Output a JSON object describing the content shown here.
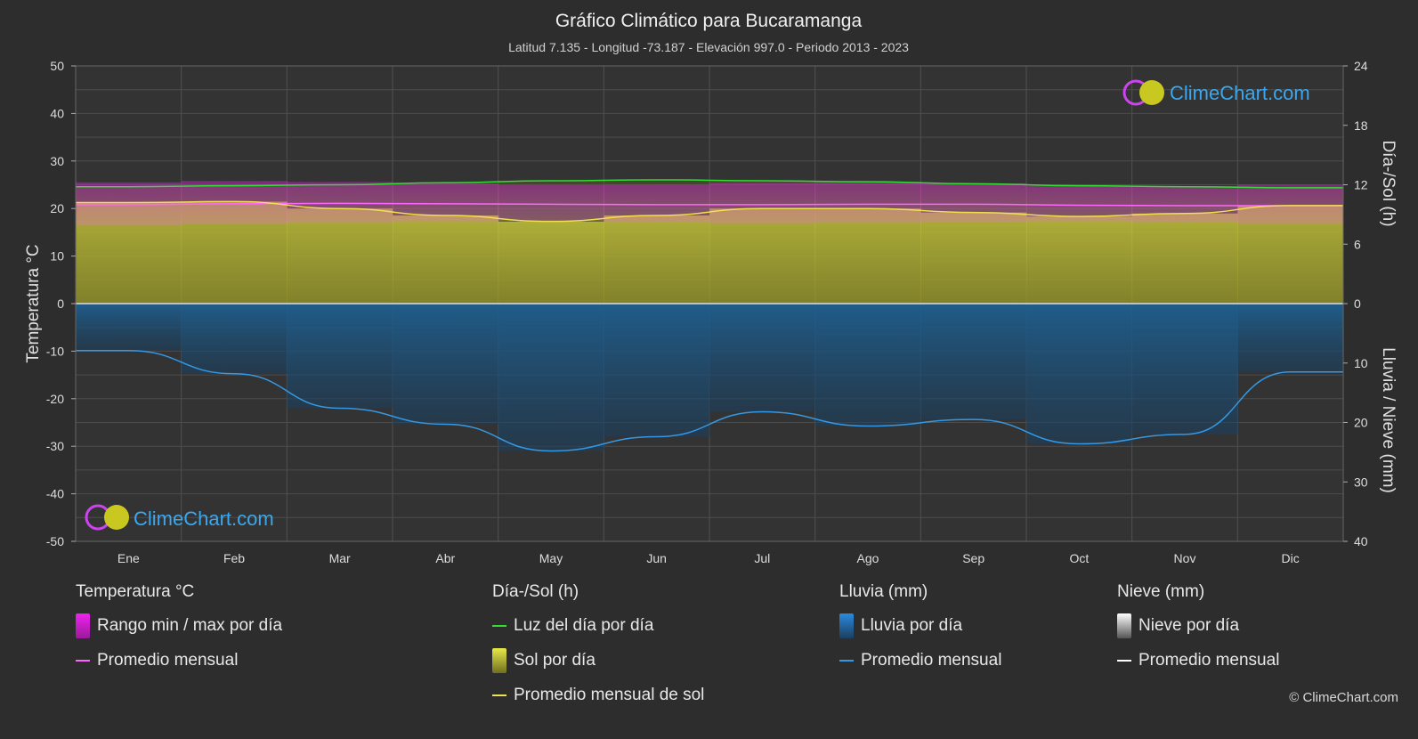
{
  "title": "Gráfico Climático para Bucaramanga",
  "subtitle": "Latitud 7.135 - Longitud -73.187 - Elevación 997.0 - Periodo 2013 - 2023",
  "brand": "ClimeChart.com",
  "copyright": "© ClimeChart.com",
  "colors": {
    "background": "#2d2d2d",
    "temp_range": "#cc22cc",
    "temp_avg": "#ff66ff",
    "daylight": "#33dd33",
    "sunshine": "#b8b832",
    "sunshine_avg": "#f0e050",
    "rain": "#1f5f8f",
    "rain_avg": "#3399e6",
    "snow_avg": "#ffffff"
  },
  "chart_data": {
    "type": "area",
    "title": "Gráfico Climático para Bucaramanga",
    "categories": [
      "Ene",
      "Feb",
      "Mar",
      "Abr",
      "May",
      "Jun",
      "Jul",
      "Ago",
      "Sep",
      "Oct",
      "Nov",
      "Dic"
    ],
    "y_left": {
      "label": "Temperatura °C",
      "range": [
        -50,
        50
      ],
      "ticks": [
        "50",
        "40",
        "30",
        "20",
        "10",
        "0",
        "-10",
        "-20",
        "-30",
        "-40",
        "-50"
      ]
    },
    "y_right_top": {
      "label": "Día-/Sol (h)",
      "range": [
        0,
        24
      ],
      "ticks": [
        "24",
        "18",
        "12",
        "6",
        "0"
      ]
    },
    "y_right_bottom": {
      "label": "Lluvia / Nieve (mm)",
      "range": [
        0,
        40
      ],
      "ticks": [
        "0",
        "10",
        "20",
        "30",
        "40"
      ]
    },
    "grid": true,
    "series": [
      {
        "name": "Rango min / max por día",
        "unit": "°C",
        "min": [
          16.5,
          16.7,
          17.0,
          17.3,
          17.4,
          17.1,
          16.9,
          17.0,
          17.2,
          17.3,
          17.2,
          16.8
        ],
        "max": [
          25.5,
          25.8,
          25.6,
          25.2,
          24.9,
          25.0,
          25.4,
          25.5,
          25.3,
          24.8,
          24.7,
          25.0
        ]
      },
      {
        "name": "Promedio mensual",
        "unit": "°C",
        "values": [
          20.8,
          21.0,
          21.1,
          21.0,
          20.9,
          20.8,
          20.8,
          20.9,
          20.9,
          20.7,
          20.6,
          20.6
        ]
      },
      {
        "name": "Luz del día por día",
        "unit": "h",
        "values": [
          11.8,
          11.9,
          12.0,
          12.2,
          12.4,
          12.5,
          12.4,
          12.3,
          12.1,
          11.9,
          11.8,
          11.7
        ]
      },
      {
        "name": "Sol por día",
        "unit": "h",
        "values": [
          10.2,
          10.3,
          9.6,
          8.9,
          8.3,
          8.9,
          9.6,
          9.6,
          9.2,
          8.8,
          9.1,
          9.9
        ]
      },
      {
        "name": "Promedio mensual de sol",
        "unit": "h",
        "values": [
          10.2,
          10.3,
          9.6,
          8.9,
          8.3,
          8.9,
          9.6,
          9.6,
          9.2,
          8.8,
          9.1,
          9.9
        ]
      },
      {
        "name": "Lluvia por día",
        "unit": "mm",
        "values": [
          7.9,
          11.8,
          17.6,
          20.3,
          24.8,
          22.4,
          18.2,
          20.6,
          19.5,
          23.6,
          22.0,
          11.5
        ]
      },
      {
        "name": "Promedio mensual",
        "unit": "mm",
        "values": [
          7.9,
          11.8,
          17.6,
          20.3,
          24.8,
          22.4,
          18.2,
          20.6,
          19.5,
          23.6,
          22.0,
          11.5
        ]
      },
      {
        "name": "Promedio mensual",
        "unit": "mm (nieve)",
        "values": [
          0,
          0,
          0,
          0,
          0,
          0,
          0,
          0,
          0,
          0,
          0,
          0
        ]
      }
    ]
  },
  "legend": {
    "temp": {
      "head": "Temperatura °C",
      "range": "Rango min / max por día",
      "avg": "Promedio mensual"
    },
    "sun": {
      "head": "Día-/Sol (h)",
      "daylight": "Luz del día por día",
      "sun": "Sol por día",
      "sun_avg": "Promedio mensual de sol"
    },
    "rain": {
      "head": "Lluvia (mm)",
      "rain": "Lluvia por día",
      "avg": "Promedio mensual"
    },
    "snow": {
      "head": "Nieve (mm)",
      "snow": "Nieve por día",
      "avg": "Promedio mensual"
    }
  }
}
